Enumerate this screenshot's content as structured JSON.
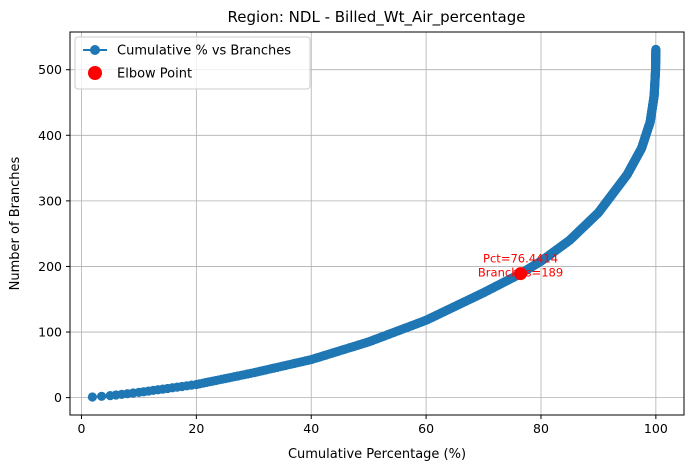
{
  "chart_data": {
    "type": "scatter",
    "title": "Region: NDL - Billed_Wt_Air_percentage",
    "xlabel": "Cumulative Percentage (%)",
    "ylabel": "Number of Branches",
    "xlim": [
      -2.0,
      104.9
    ],
    "ylim": [
      -26.5,
      557.5
    ],
    "xticks": [
      0,
      20,
      40,
      60,
      80,
      100
    ],
    "yticks": [
      0,
      100,
      200,
      300,
      400,
      500
    ],
    "grid": true,
    "legend_position": "upper-left",
    "total_branches": 531,
    "series": [
      {
        "name": "Cumulative % vs Branches",
        "kind": "line-with-markers",
        "color": "#1f77b4",
        "curve_points": [
          {
            "x": 1.9,
            "y": 1
          },
          {
            "x": 3.5,
            "y": 2
          },
          {
            "x": 5,
            "y": 3
          },
          {
            "x": 10,
            "y": 8
          },
          {
            "x": 20,
            "y": 20
          },
          {
            "x": 30,
            "y": 38
          },
          {
            "x": 40,
            "y": 58
          },
          {
            "x": 50,
            "y": 85
          },
          {
            "x": 60,
            "y": 118
          },
          {
            "x": 70,
            "y": 160
          },
          {
            "x": 76.4414,
            "y": 189
          },
          {
            "x": 80,
            "y": 208
          },
          {
            "x": 85,
            "y": 240
          },
          {
            "x": 90,
            "y": 282
          },
          {
            "x": 95,
            "y": 340
          },
          {
            "x": 97.5,
            "y": 380
          },
          {
            "x": 99,
            "y": 420
          },
          {
            "x": 99.7,
            "y": 460
          },
          {
            "x": 99.95,
            "y": 500
          },
          {
            "x": 100,
            "y": 531
          }
        ]
      },
      {
        "name": "Elbow Point",
        "kind": "marker",
        "color": "#ff0000",
        "x": 76.4414,
        "y": 189
      }
    ],
    "annotation": {
      "line1": "Pct=76.4414",
      "line2": "Branches=189",
      "color": "#ff0000"
    }
  }
}
